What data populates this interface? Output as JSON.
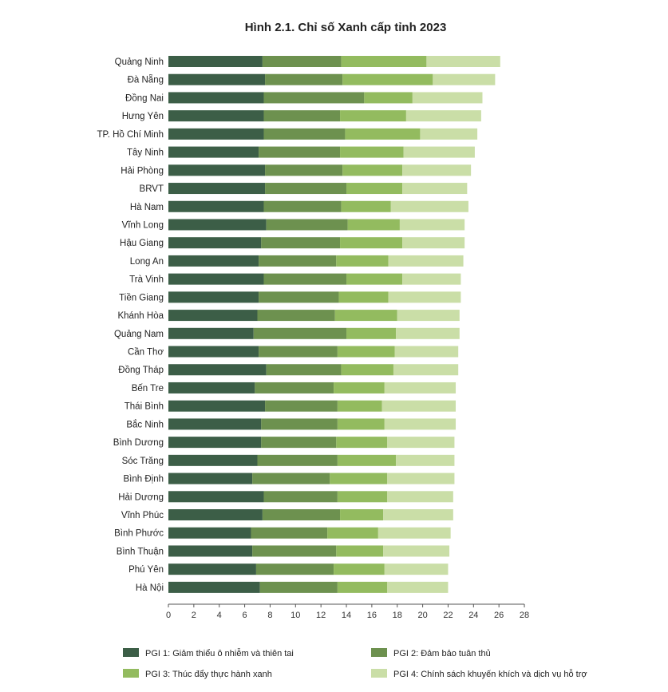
{
  "colors": {
    "pgi1": "#3c5e47",
    "pgi2": "#6d914f",
    "pgi3": "#93bb5f",
    "pgi4": "#cadea7",
    "axis": "#555555"
  },
  "chart_data": {
    "type": "bar",
    "orientation": "horizontal",
    "stacked": true,
    "title": "Hình 2.1. Chỉ số Xanh cấp tỉnh 2023",
    "xlabel": "",
    "ylabel": "",
    "xlim": [
      0,
      28
    ],
    "xticks": [
      0,
      2,
      4,
      6,
      8,
      10,
      12,
      14,
      16,
      18,
      20,
      22,
      24,
      26,
      28
    ],
    "grid": false,
    "legend_position": "bottom",
    "categories": [
      "Quảng Ninh",
      "Đà Nẵng",
      "Đồng Nai",
      "Hưng Yên",
      "TP. Hồ Chí Minh",
      "Tây Ninh",
      "Hải Phòng",
      "BRVT",
      "Hà Nam",
      "Vĩnh Long",
      "Hậu Giang",
      "Long An",
      "Trà Vinh",
      "Tiền Giang",
      "Khánh Hòa",
      "Quảng Nam",
      "Cần Thơ",
      "Đồng Tháp",
      "Bến Tre",
      "Thái Bình",
      "Bắc Ninh",
      "Bình Dương",
      "Sóc Trăng",
      "Bình Định",
      "Hải Dương",
      "Vĩnh Phúc",
      "Bình Phước",
      "Bình Thuận",
      "Phú Yên",
      "Hà Nội"
    ],
    "series": [
      {
        "name": "PGI 1: Giảm thiểu ô nhiễm và thiên tai",
        "color_key": "pgi1",
        "values": [
          7.4,
          7.6,
          7.5,
          7.5,
          7.5,
          7.1,
          7.6,
          7.6,
          7.5,
          7.7,
          7.3,
          7.1,
          7.5,
          7.1,
          7.0,
          6.7,
          7.1,
          7.7,
          6.8,
          7.6,
          7.3,
          7.3,
          7.0,
          6.6,
          7.5,
          7.4,
          6.5,
          6.6,
          6.9,
          7.2
        ]
      },
      {
        "name": "PGI 2: Đảm bảo tuân thủ",
        "color_key": "pgi2",
        "values": [
          6.2,
          6.1,
          7.9,
          6.0,
          6.4,
          6.4,
          6.1,
          6.4,
          6.1,
          6.4,
          6.2,
          6.1,
          6.5,
          6.3,
          6.1,
          7.3,
          6.2,
          5.9,
          6.2,
          5.7,
          6.0,
          5.9,
          6.3,
          6.1,
          5.8,
          6.1,
          6.0,
          6.6,
          6.1,
          6.1
        ]
      },
      {
        "name": "PGI 3: Thúc đẩy thực hành xanh",
        "color_key": "pgi3",
        "values": [
          6.7,
          7.1,
          3.8,
          5.2,
          5.9,
          5.0,
          4.7,
          4.4,
          3.9,
          4.1,
          4.9,
          4.1,
          4.4,
          3.9,
          4.9,
          3.9,
          4.5,
          4.1,
          4.0,
          3.5,
          3.7,
          4.0,
          4.6,
          4.5,
          3.9,
          3.4,
          4.0,
          3.7,
          4.0,
          3.9
        ]
      },
      {
        "name": "PGI 4: Chính sách khuyến khích và dịch vụ hỗ trợ",
        "color_key": "pgi4",
        "values": [
          5.8,
          4.9,
          5.5,
          5.9,
          4.5,
          5.6,
          5.4,
          5.1,
          6.1,
          5.1,
          4.9,
          5.9,
          4.6,
          5.7,
          4.9,
          5.0,
          5.0,
          5.1,
          5.6,
          5.8,
          5.6,
          5.3,
          4.6,
          5.3,
          5.2,
          5.5,
          5.7,
          5.2,
          5.0,
          4.8
        ]
      }
    ]
  }
}
